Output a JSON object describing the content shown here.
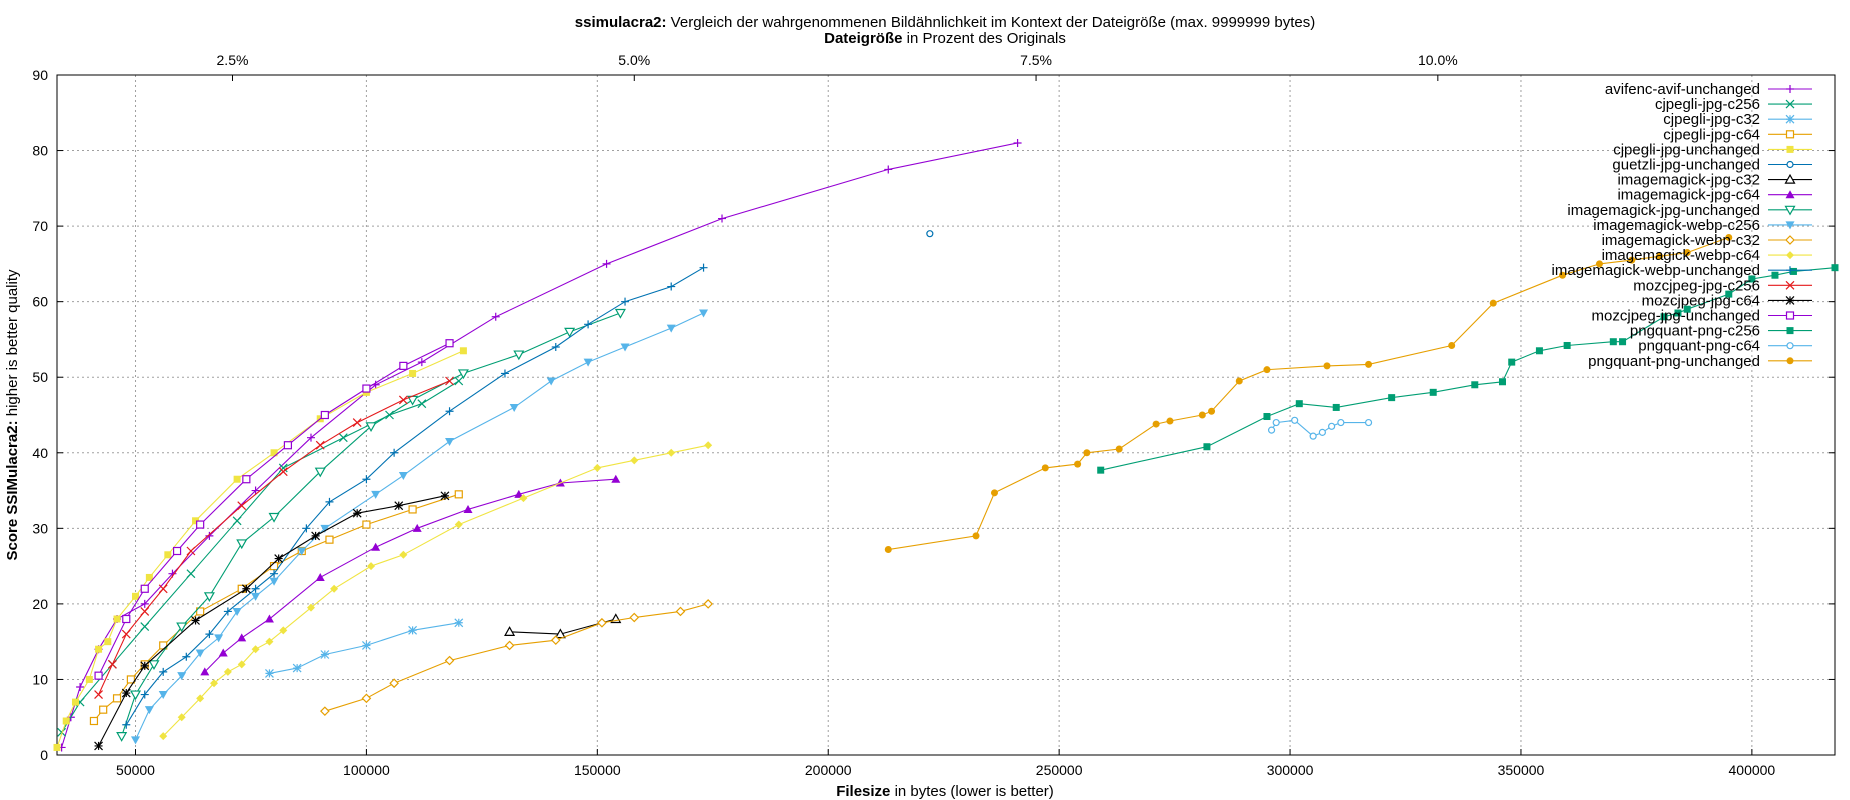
{
  "chart_data": {
    "type": "line",
    "title_bold": "ssimulacra2:",
    "title_rest": " Vergleich der wahrgenommenen Bildähnlichkeit im Kontext der Dateigröße (max. 9999999 bytes)",
    "x2label_bold": "Dateigröße",
    "x2label_rest": " in Prozent des Originals",
    "xlabel_bold": "Filesize",
    "xlabel_rest": " in bytes (lower is better)",
    "ylabel_bold": "Score SSIMulacra2:",
    "ylabel_rest": " higher is better quality",
    "xlim": [
      33000,
      418000
    ],
    "ylim": [
      0,
      90
    ],
    "xticks": [
      50000,
      100000,
      150000,
      200000,
      250000,
      300000,
      350000,
      400000
    ],
    "yticks": [
      0,
      10,
      20,
      30,
      40,
      50,
      60,
      70,
      80,
      90
    ],
    "x2ticks": [
      {
        "label": "2.5%",
        "value": 71000
      },
      {
        "label": "5.0%",
        "value": 158000
      },
      {
        "label": "7.5%",
        "value": 245000
      },
      {
        "label": "10.0%",
        "value": 332000
      }
    ],
    "grid": true,
    "legend_position": "top-right",
    "series": [
      {
        "name": "avifenc-avif-unchanged",
        "color": "#9400d3",
        "marker": "plus",
        "points": [
          [
            34000,
            1
          ],
          [
            36000,
            5
          ],
          [
            38000,
            9
          ],
          [
            42000,
            14
          ],
          [
            46000,
            18
          ],
          [
            52000,
            20
          ],
          [
            58000,
            24
          ],
          [
            66000,
            29
          ],
          [
            76000,
            35
          ],
          [
            88000,
            42
          ],
          [
            102000,
            49
          ],
          [
            112000,
            52
          ],
          [
            128000,
            58
          ],
          [
            152000,
            65
          ],
          [
            177000,
            71
          ],
          [
            213000,
            77.5
          ],
          [
            241000,
            81
          ]
        ]
      },
      {
        "name": "cjpegli-jpg-c256",
        "color": "#009e73",
        "marker": "x",
        "points": [
          [
            34000,
            3
          ],
          [
            38000,
            7
          ],
          [
            45000,
            12
          ],
          [
            52000,
            17
          ],
          [
            62000,
            24
          ],
          [
            72000,
            31
          ],
          [
            82000,
            38
          ],
          [
            95000,
            42
          ],
          [
            105000,
            45
          ],
          [
            112000,
            46.5
          ],
          [
            120000,
            49.5
          ]
        ]
      },
      {
        "name": "cjpegli-jpg-c32",
        "color": "#56b4e9",
        "marker": "star",
        "points": [
          [
            79000,
            10.8
          ],
          [
            85000,
            11.5
          ],
          [
            91000,
            13.3
          ],
          [
            100000,
            14.5
          ],
          [
            110000,
            16.5
          ],
          [
            120000,
            17.5
          ]
        ]
      },
      {
        "name": "cjpegli-jpg-c64",
        "color": "#e69f00",
        "marker": "square-open",
        "points": [
          [
            41000,
            4.5
          ],
          [
            43000,
            6
          ],
          [
            46000,
            7.5
          ],
          [
            49000,
            10
          ],
          [
            52000,
            12
          ],
          [
            56000,
            14.5
          ],
          [
            64000,
            19
          ],
          [
            73000,
            22
          ],
          [
            80000,
            25
          ],
          [
            86000,
            27
          ],
          [
            92000,
            28.5
          ],
          [
            100000,
            30.5
          ],
          [
            110000,
            32.5
          ],
          [
            120000,
            34.5
          ]
        ]
      },
      {
        "name": "cjpegli-jpg-unchanged",
        "color": "#f0e442",
        "marker": "square",
        "points": [
          [
            33000,
            1
          ],
          [
            35000,
            4.5
          ],
          [
            37000,
            7
          ],
          [
            40000,
            10
          ],
          [
            42000,
            14
          ],
          [
            44000,
            15
          ],
          [
            46000,
            18
          ],
          [
            50000,
            21
          ],
          [
            53000,
            23.5
          ],
          [
            57000,
            26.5
          ],
          [
            63000,
            31
          ],
          [
            72000,
            36.5
          ],
          [
            80000,
            40
          ],
          [
            90000,
            44.5
          ],
          [
            100000,
            48
          ],
          [
            110000,
            50.5
          ],
          [
            121000,
            53.5
          ]
        ]
      },
      {
        "name": "guetzli-jpg-unchanged",
        "color": "#0072b2",
        "marker": "circle-open",
        "points": [
          [
            222000,
            69
          ]
        ]
      },
      {
        "name": "imagemagick-jpg-c32",
        "color": "#000000",
        "marker": "triangle-open",
        "points": [
          [
            131000,
            16.3
          ],
          [
            142000,
            16
          ],
          [
            154000,
            18
          ]
        ]
      },
      {
        "name": "imagemagick-jpg-c64",
        "color": "#9400d3",
        "marker": "triangle",
        "points": [
          [
            65000,
            11
          ],
          [
            69000,
            13.5
          ],
          [
            73000,
            15.5
          ],
          [
            79000,
            18
          ],
          [
            90000,
            23.5
          ],
          [
            102000,
            27.5
          ],
          [
            111000,
            30
          ],
          [
            122000,
            32.5
          ],
          [
            133000,
            34.5
          ],
          [
            142000,
            36
          ],
          [
            154000,
            36.5
          ]
        ]
      },
      {
        "name": "imagemagick-jpg-unchanged",
        "color": "#009e73",
        "marker": "triangle-down-open",
        "points": [
          [
            47000,
            2.5
          ],
          [
            50000,
            8
          ],
          [
            54000,
            12
          ],
          [
            60000,
            17
          ],
          [
            66000,
            21
          ],
          [
            73000,
            28
          ],
          [
            80000,
            31.5
          ],
          [
            90000,
            37.5
          ],
          [
            101000,
            43.5
          ],
          [
            110000,
            47
          ],
          [
            121000,
            50.5
          ],
          [
            133000,
            53
          ],
          [
            144000,
            56
          ],
          [
            155000,
            58.5
          ]
        ]
      },
      {
        "name": "imagemagick-webp-c256",
        "color": "#56b4e9",
        "marker": "triangle-down",
        "points": [
          [
            50000,
            2
          ],
          [
            53000,
            6
          ],
          [
            56000,
            8
          ],
          [
            60000,
            10.5
          ],
          [
            64000,
            13.5
          ],
          [
            68000,
            15.5
          ],
          [
            72000,
            19
          ],
          [
            76000,
            21
          ],
          [
            80000,
            23
          ],
          [
            86000,
            27
          ],
          [
            91000,
            30
          ],
          [
            102000,
            34.5
          ],
          [
            108000,
            37
          ],
          [
            118000,
            41.5
          ],
          [
            132000,
            46
          ],
          [
            140000,
            49.5
          ],
          [
            148000,
            52
          ],
          [
            156000,
            54
          ],
          [
            166000,
            56.5
          ],
          [
            173000,
            58.5
          ]
        ]
      },
      {
        "name": "imagemagick-webp-c32",
        "color": "#e69f00",
        "marker": "diamond-open",
        "points": [
          [
            91000,
            5.8
          ],
          [
            100000,
            7.5
          ],
          [
            106000,
            9.5
          ],
          [
            118000,
            12.5
          ],
          [
            131000,
            14.5
          ],
          [
            141000,
            15.2
          ],
          [
            151000,
            17.5
          ],
          [
            158000,
            18.2
          ],
          [
            168000,
            19
          ],
          [
            174000,
            20
          ]
        ]
      },
      {
        "name": "imagemagick-webp-c64",
        "color": "#f0e442",
        "marker": "diamond",
        "points": [
          [
            56000,
            2.5
          ],
          [
            60000,
            5
          ],
          [
            64000,
            7.5
          ],
          [
            67000,
            9.5
          ],
          [
            70000,
            11
          ],
          [
            73000,
            12
          ],
          [
            76000,
            14
          ],
          [
            79000,
            15
          ],
          [
            82000,
            16.5
          ],
          [
            88000,
            19.5
          ],
          [
            93000,
            22
          ],
          [
            101000,
            25
          ],
          [
            108000,
            26.5
          ],
          [
            120000,
            30.5
          ],
          [
            134000,
            34
          ],
          [
            150000,
            38
          ],
          [
            158000,
            39
          ],
          [
            166000,
            40
          ],
          [
            174000,
            41
          ]
        ]
      },
      {
        "name": "imagemagick-webp-unchanged",
        "color": "#0072b2",
        "marker": "plus",
        "points": [
          [
            48000,
            4
          ],
          [
            52000,
            8
          ],
          [
            56000,
            11
          ],
          [
            61000,
            13
          ],
          [
            66000,
            16
          ],
          [
            70000,
            19
          ],
          [
            76000,
            22
          ],
          [
            80000,
            24
          ],
          [
            87000,
            30
          ],
          [
            92000,
            33.5
          ],
          [
            100000,
            36.5
          ],
          [
            106000,
            40
          ],
          [
            118000,
            45.5
          ],
          [
            130000,
            50.5
          ],
          [
            141000,
            54
          ],
          [
            148000,
            57
          ],
          [
            156000,
            60
          ],
          [
            166000,
            62
          ],
          [
            173000,
            64.5
          ]
        ]
      },
      {
        "name": "mozcjpeg-jpg-c256",
        "color": "#e41a1c",
        "marker": "x",
        "points": [
          [
            42000,
            8
          ],
          [
            45000,
            12
          ],
          [
            48000,
            16
          ],
          [
            52000,
            19
          ],
          [
            56000,
            22
          ],
          [
            62000,
            27
          ],
          [
            73000,
            33
          ],
          [
            82000,
            37.5
          ],
          [
            90000,
            41
          ],
          [
            98000,
            44
          ],
          [
            108000,
            47
          ],
          [
            118000,
            49.5
          ]
        ]
      },
      {
        "name": "mozcjpeg-jpg-c64",
        "color": "#000000",
        "marker": "star",
        "points": [
          [
            42000,
            1.2
          ],
          [
            48000,
            8.2
          ],
          [
            52000,
            11.8
          ],
          [
            63000,
            17.8
          ],
          [
            74000,
            22
          ],
          [
            81000,
            26
          ],
          [
            89000,
            29
          ],
          [
            98000,
            32
          ],
          [
            107000,
            33
          ],
          [
            117000,
            34.3
          ]
        ]
      },
      {
        "name": "mozcjpeg-jpg-unchanged",
        "color": "#9400d3",
        "marker": "square-open",
        "points": [
          [
            42000,
            10.5
          ],
          [
            48000,
            18
          ],
          [
            52000,
            22
          ],
          [
            59000,
            27
          ],
          [
            64000,
            30.5
          ],
          [
            74000,
            36.5
          ],
          [
            83000,
            41
          ],
          [
            91000,
            45
          ],
          [
            100000,
            48.5
          ],
          [
            108000,
            51.5
          ],
          [
            118000,
            54.5
          ]
        ]
      },
      {
        "name": "pngquant-png-c256",
        "color": "#009e73",
        "marker": "square",
        "points": [
          [
            259000,
            37.7
          ],
          [
            282000,
            40.8
          ],
          [
            295000,
            44.8
          ],
          [
            302000,
            46.5
          ],
          [
            310000,
            46
          ],
          [
            322000,
            47.3
          ],
          [
            331000,
            48
          ],
          [
            340000,
            49
          ],
          [
            346000,
            49.4
          ],
          [
            348000,
            52
          ],
          [
            354000,
            53.5
          ],
          [
            360000,
            54.2
          ],
          [
            370000,
            54.7
          ],
          [
            372000,
            54.7
          ],
          [
            381000,
            58
          ],
          [
            384000,
            58.5
          ],
          [
            386000,
            59
          ],
          [
            395000,
            61
          ],
          [
            400000,
            63
          ],
          [
            405000,
            63.5
          ],
          [
            409000,
            64
          ],
          [
            418000,
            64.5
          ]
        ]
      },
      {
        "name": "pngquant-png-c64",
        "color": "#56b4e9",
        "marker": "circle-open",
        "points": [
          [
            296000,
            43
          ],
          [
            297000,
            44
          ],
          [
            301000,
            44.3
          ],
          [
            305000,
            42.2
          ],
          [
            307000,
            42.7
          ],
          [
            309000,
            43.5
          ],
          [
            311000,
            44
          ],
          [
            317000,
            44
          ]
        ]
      },
      {
        "name": "pngquant-png-unchanged",
        "color": "#e69f00",
        "marker": "circle",
        "points": [
          [
            213000,
            27.2
          ],
          [
            232000,
            29
          ],
          [
            236000,
            34.7
          ],
          [
            247000,
            38
          ],
          [
            254000,
            38.5
          ],
          [
            256000,
            40
          ],
          [
            263000,
            40.5
          ],
          [
            271000,
            43.8
          ],
          [
            274000,
            44.2
          ],
          [
            281000,
            45
          ],
          [
            283000,
            45.5
          ],
          [
            289000,
            49.5
          ],
          [
            295000,
            51
          ],
          [
            308000,
            51.5
          ],
          [
            317000,
            51.7
          ],
          [
            335000,
            54.2
          ],
          [
            344000,
            59.8
          ],
          [
            359000,
            63.5
          ],
          [
            367000,
            65
          ],
          [
            374000,
            65.5
          ],
          [
            380000,
            66
          ],
          [
            386000,
            66.5
          ],
          [
            395000,
            68.5
          ]
        ]
      }
    ]
  }
}
